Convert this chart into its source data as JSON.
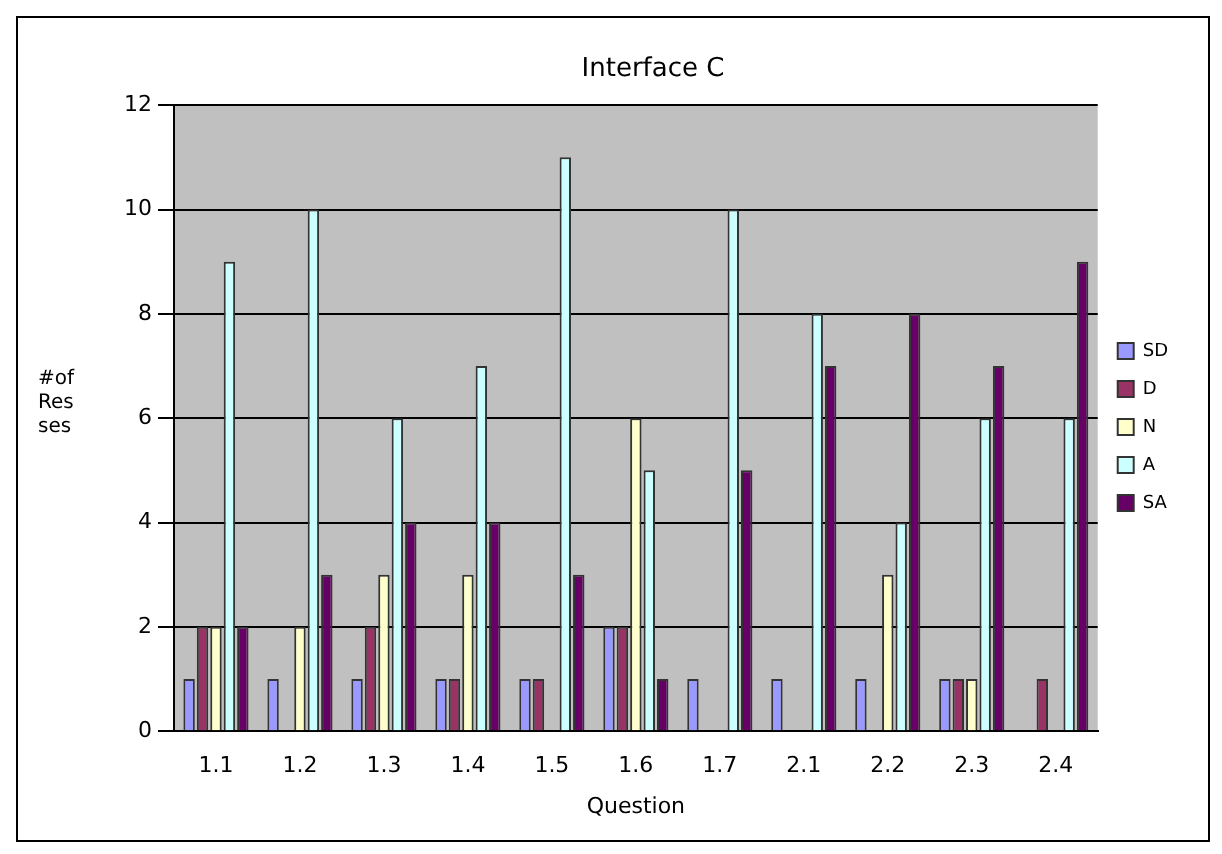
{
  "chart_data": {
    "type": "bar",
    "title": "Interface C",
    "xlabel": "Question",
    "ylabel": "#of Res ses",
    "categories": [
      "1.1",
      "1.2",
      "1.3",
      "1.4",
      "1.5",
      "1.6",
      "1.7",
      "2.1",
      "2.2",
      "2.3",
      "2.4"
    ],
    "series": [
      {
        "name": "SD",
        "color": "#9999ff",
        "values": [
          1,
          1,
          1,
          1,
          1,
          2,
          1,
          1,
          1,
          1,
          0
        ]
      },
      {
        "name": "D",
        "color": "#993366",
        "values": [
          2,
          0,
          2,
          1,
          1,
          2,
          0,
          0,
          0,
          1,
          1
        ]
      },
      {
        "name": "N",
        "color": "#ffffcc",
        "values": [
          2,
          2,
          3,
          3,
          0,
          6,
          0,
          0,
          3,
          1,
          0
        ]
      },
      {
        "name": "A",
        "color": "#ccffff",
        "values": [
          9,
          10,
          6,
          7,
          11,
          5,
          10,
          8,
          4,
          6,
          6
        ]
      },
      {
        "name": "SA",
        "color": "#660066",
        "values": [
          2,
          3,
          4,
          4,
          3,
          1,
          5,
          7,
          8,
          7,
          9
        ]
      }
    ],
    "ylim": [
      0,
      12
    ],
    "yticks": [
      0,
      2,
      4,
      6,
      8,
      10,
      12
    ],
    "grid": "y",
    "legend": "right"
  }
}
